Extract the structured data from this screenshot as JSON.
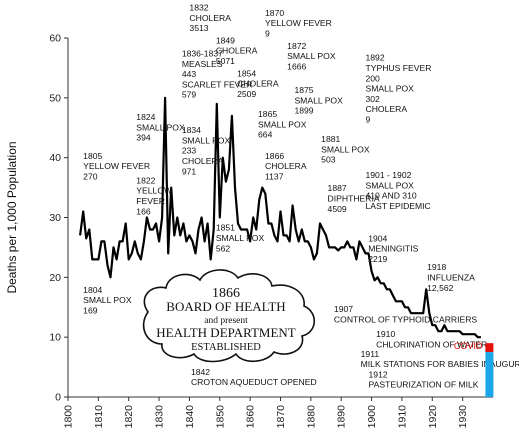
{
  "chart_data": {
    "type": "line",
    "title": "",
    "ylabel": "Deaths per 1,000 Population",
    "xlabel": "",
    "xlim": [
      1800,
      1940
    ],
    "ylim": [
      0,
      60
    ],
    "x_ticks": [
      "1800",
      "1810",
      "1820",
      "1830",
      "1840",
      "1850",
      "1860",
      "1870",
      "1880",
      "1890",
      "1900",
      "1910",
      "1920",
      "1930"
    ],
    "y_ticks": [
      "0",
      "10",
      "20",
      "30",
      "40",
      "50",
      "60"
    ],
    "grid": false,
    "legend": "none",
    "line_color": "#000000",
    "series": [
      {
        "x": [
          1804,
          1805,
          1806,
          1807,
          1808,
          1809,
          1810,
          1811,
          1812,
          1813,
          1814,
          1815,
          1816,
          1817,
          1818,
          1819,
          1820,
          1821,
          1822,
          1823,
          1824,
          1825,
          1826,
          1827,
          1828,
          1829,
          1830,
          1831,
          1832,
          1833,
          1834,
          1835,
          1836,
          1837,
          1838,
          1839,
          1840,
          1841,
          1842,
          1843,
          1844,
          1845,
          1846,
          1847,
          1848,
          1849,
          1850,
          1851,
          1852,
          1853,
          1854,
          1855,
          1856,
          1857,
          1858,
          1859,
          1860,
          1861,
          1862,
          1863,
          1864,
          1865,
          1866,
          1867,
          1868,
          1869,
          1870,
          1871,
          1872,
          1873,
          1874,
          1875,
          1876,
          1877,
          1878,
          1879,
          1880,
          1881,
          1882,
          1883,
          1884,
          1885,
          1886,
          1887,
          1888,
          1889,
          1890,
          1891,
          1892,
          1893,
          1894,
          1895,
          1896,
          1897,
          1898,
          1899,
          1900,
          1901,
          1902,
          1903,
          1904,
          1905,
          1906,
          1907,
          1908,
          1909,
          1910,
          1911,
          1912,
          1913,
          1914,
          1915,
          1916,
          1917,
          1918,
          1919,
          1920,
          1921,
          1922,
          1923,
          1924,
          1925,
          1926,
          1927,
          1928,
          1929,
          1930,
          1931,
          1932,
          1933,
          1934,
          1935,
          1936
        ],
        "y": [
          27,
          31,
          26.5,
          28,
          23,
          23,
          23,
          26,
          26,
          22,
          20,
          25,
          23,
          26,
          26,
          29,
          23,
          24,
          26,
          24,
          23,
          26,
          30,
          28,
          28,
          29,
          26,
          30,
          50,
          24,
          35,
          27,
          30,
          27,
          29,
          26,
          27,
          26,
          24,
          28,
          30,
          26,
          29,
          23,
          28,
          49,
          30,
          40,
          36,
          38,
          47,
          35,
          29,
          28,
          28,
          28,
          26,
          30,
          28,
          33,
          35,
          34,
          29,
          29,
          27,
          26,
          31,
          27,
          27,
          26,
          32,
          28,
          26,
          28,
          26,
          26,
          25,
          23,
          24,
          29,
          28,
          27,
          25,
          25,
          25,
          24.5,
          25,
          25,
          26,
          25,
          25,
          23,
          26,
          25,
          24,
          24,
          21,
          19.5,
          20,
          19,
          19,
          18,
          18,
          17,
          16,
          16,
          16,
          15,
          15,
          14,
          14,
          14,
          14,
          14,
          18,
          14,
          12,
          12,
          11,
          11,
          12,
          11,
          11,
          11,
          11,
          11,
          10.5,
          10.5,
          10.5,
          10.5,
          10.5,
          10,
          10
        ]
      }
    ],
    "annotations": [
      {
        "lines": [
          "1805",
          "YELLOW FEVER",
          "270"
        ],
        "x": 1805,
        "y": 39.8
      },
      {
        "lines": [
          "1804",
          "SMALL POX",
          "169"
        ],
        "x": 1805,
        "y": 17.4
      },
      {
        "lines": [
          "1824",
          "SMALL POX",
          "394"
        ],
        "x": 1822.5,
        "y": 46.3
      },
      {
        "lines": [
          "1822",
          "YELLOW",
          "FEVER",
          "166"
        ],
        "x": 1822.5,
        "y": 35.7
      },
      {
        "lines": [
          "1832",
          "CHOLERA",
          "3513"
        ],
        "x": 1840,
        "y": 64.6
      },
      {
        "lines": [
          "1836-1837",
          "MEASLES",
          "443",
          "SCARLET FEVER",
          "579"
        ],
        "x": 1837.5,
        "y": 56.9
      },
      {
        "lines": [
          "1834",
          "SMALL POX",
          "233",
          "CHOLERA",
          "971"
        ],
        "x": 1837.5,
        "y": 44.1
      },
      {
        "lines": [
          "1849",
          "CHOLERA",
          "5071"
        ],
        "x": 1848.7,
        "y": 59.1
      },
      {
        "lines": [
          "1854",
          "CHOLERA",
          "2509"
        ],
        "x": 1855.7,
        "y": 53.6
      },
      {
        "lines": [
          "1851",
          "SMALL POX",
          "562"
        ],
        "x": 1848.7,
        "y": 27.8
      },
      {
        "lines": [
          "1870",
          "YELLOW FEVER",
          "9"
        ],
        "x": 1864.9,
        "y": 63.7
      },
      {
        "lines": [
          "1872",
          "SMALL POX",
          "1666"
        ],
        "x": 1872.2,
        "y": 58.2
      },
      {
        "lines": [
          "1865",
          "SMALL POX",
          "664"
        ],
        "x": 1862.6,
        "y": 46.8
      },
      {
        "lines": [
          "1875",
          "SMALL POX",
          "1899"
        ],
        "x": 1874.6,
        "y": 50.8
      },
      {
        "lines": [
          "1866",
          "CHOLERA",
          "1137"
        ],
        "x": 1864.9,
        "y": 39.8
      },
      {
        "lines": [
          "1881",
          "SMALL POX",
          "503"
        ],
        "x": 1883.4,
        "y": 42.6
      },
      {
        "lines": [
          "1887",
          "DIPHTHERIA",
          "4509"
        ],
        "x": 1885.5,
        "y": 34.4
      },
      {
        "lines": [
          "1892",
          "TYPHUS FEVER",
          "200",
          "SMALL POX",
          "302",
          "CHOLERA",
          "9"
        ],
        "x": 1898,
        "y": 56.2
      },
      {
        "lines": [
          "1901 - 1902",
          "SMALL POX",
          "410 AND 310",
          "LAST EPIDEMIC"
        ],
        "x": 1898,
        "y": 36.6
      },
      {
        "lines": [
          "1904",
          "MENINGITIS",
          "2219"
        ],
        "x": 1898.9,
        "y": 26.0
      },
      {
        "lines": [
          "1918",
          "INFLUENZA",
          "12,562"
        ],
        "x": 1918.3,
        "y": 21.2
      },
      {
        "lines": [
          "1907",
          "CONTROL OF TYPHOID CARRIERS"
        ],
        "x": 1887.6,
        "y": 14.2
      },
      {
        "lines": [
          "1910",
          "CHLORINATION OF WATER"
        ],
        "x": 1901.5,
        "y": 10.0
      },
      {
        "lines": [
          "1911",
          "MILK STATIONS FOR BABIES INAUGURATED"
        ],
        "x": 1896.4,
        "y": 6.7
      },
      {
        "lines": [
          "1912",
          "PASTEURIZATION OF MILK"
        ],
        "x": 1899,
        "y": 3.3
      },
      {
        "lines": [
          "1842",
          "CROTON AQUEDUCT OPENED"
        ],
        "x": 1840.5,
        "y": 3.7
      }
    ],
    "cloud_box": {
      "lines": [
        "1866",
        "BOARD OF HEALTH",
        "and present",
        "HEALTH DEPARTMENT",
        "ESTABLISHED"
      ]
    },
    "covid": {
      "label": "COVID",
      "value": 9,
      "colors": {
        "red": "#e3120b",
        "blue": "#1aa7e8"
      }
    }
  }
}
